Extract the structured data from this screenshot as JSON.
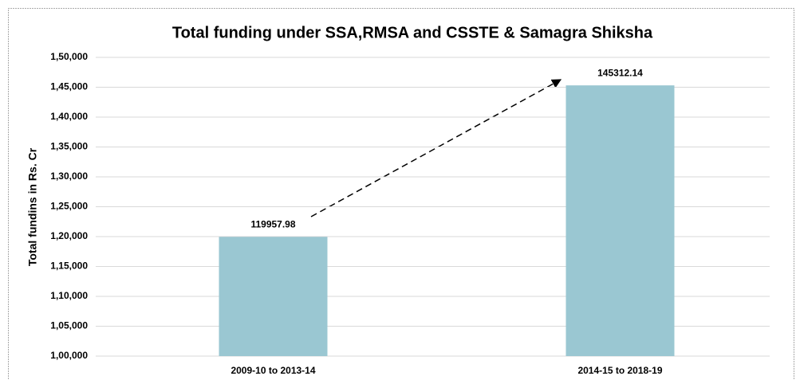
{
  "chart_data": {
    "type": "bar",
    "title": "Total funding under SSA,RMSA and CSSTE & Samagra Shiksha",
    "y_label": "Total fundins in Rs. Cr",
    "categories": [
      "2009-10 to 2013-14",
      "2014-15 to 2018-19"
    ],
    "values": [
      119957.98,
      145312.14
    ],
    "color": "#9ac7d2",
    "ylim": [
      100000,
      150000
    ],
    "yticks": [
      {
        "value": 100000,
        "label": "1,00,000"
      },
      {
        "value": 105000,
        "label": "1,05,000"
      },
      {
        "value": 110000,
        "label": "1,10,000"
      },
      {
        "value": 115000,
        "label": "1,15,000"
      },
      {
        "value": 120000,
        "label": "1,20,000"
      },
      {
        "value": 125000,
        "label": "1,25,000"
      },
      {
        "value": 130000,
        "label": "1,30,000"
      },
      {
        "value": 135000,
        "label": "1,35,000"
      },
      {
        "value": 140000,
        "label": "1,40,000"
      },
      {
        "value": 145000,
        "label": "1,45,000"
      },
      {
        "value": 150000,
        "label": "1,50,000"
      }
    ],
    "grid": true
  }
}
